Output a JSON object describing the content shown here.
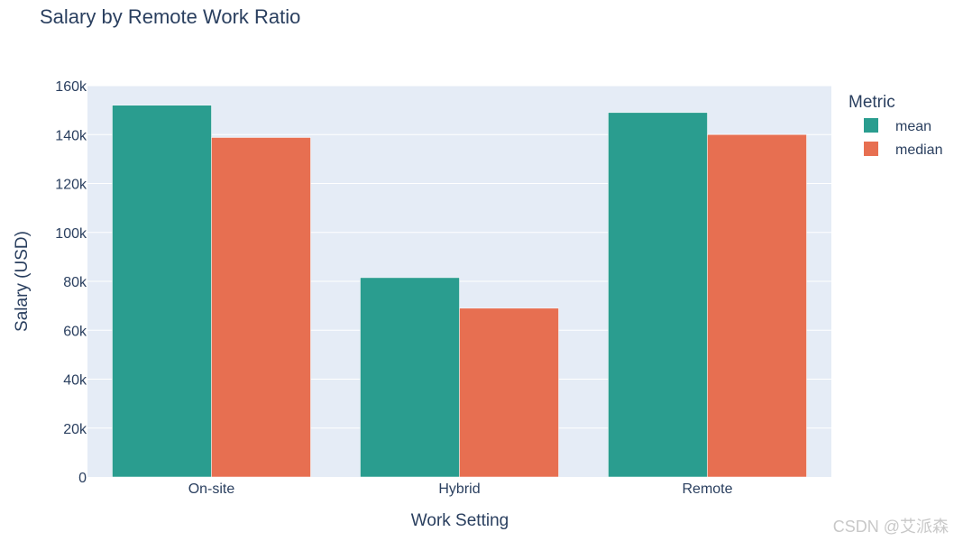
{
  "chart_data": {
    "type": "bar",
    "title": "Salary by Remote Work Ratio",
    "xlabel": "Work Setting",
    "ylabel": "Salary (USD)",
    "categories": [
      "On-site",
      "Hybrid",
      "Remote"
    ],
    "series": [
      {
        "name": "mean",
        "color": "#2a9d8f",
        "values": [
          152000,
          81500,
          149000
        ]
      },
      {
        "name": "median",
        "color": "#e76f51",
        "values": [
          138800,
          69000,
          140000
        ]
      }
    ],
    "ylim": [
      0,
      160000
    ],
    "yticks": [
      0,
      20000,
      40000,
      60000,
      80000,
      100000,
      120000,
      140000,
      160000
    ],
    "ytick_labels": [
      "0",
      "20k",
      "40k",
      "60k",
      "80k",
      "100k",
      "120k",
      "140k",
      "160k"
    ],
    "legend": {
      "title": "Metric",
      "position": "top-right"
    },
    "grid": true,
    "plot_background": "#e5ecf6"
  },
  "watermark": "CSDN @艾派森"
}
